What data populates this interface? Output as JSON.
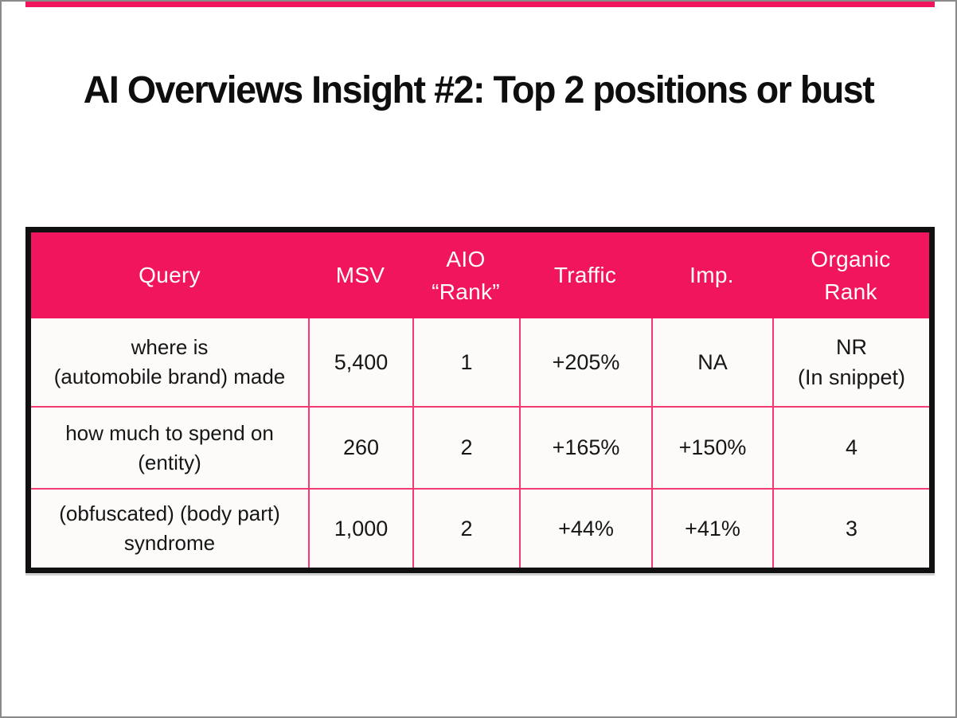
{
  "slide": {
    "title": "AI Overviews Insight #2: Top 2 positions or bust",
    "accent_color": "#F0155C",
    "grid_color": "#F43A72",
    "table_border_color": "#101010",
    "background_color": "#ffffff"
  },
  "table": {
    "headers": {
      "query": "Query",
      "msv": "MSV",
      "aio_rank": "AIO\n“Rank”",
      "traffic": "Traffic",
      "imp": "Imp.",
      "organic_rank": "Organic\nRank"
    },
    "rows": [
      {
        "query": "where is\n(automobile brand) made",
        "msv": "5,400",
        "aio_rank": "1",
        "traffic": "+205%",
        "imp": "NA",
        "organic_rank": "NR\n(In snippet)"
      },
      {
        "query": "how much to spend on\n(entity)",
        "msv": "260",
        "aio_rank": "2",
        "traffic": "+165%",
        "imp": "+150%",
        "organic_rank": "4"
      },
      {
        "query": "(obfuscated) (body part)\nsyndrome",
        "msv": "1,000",
        "aio_rank": "2",
        "traffic": "+44%",
        "imp": "+41%",
        "organic_rank": "3"
      }
    ]
  }
}
